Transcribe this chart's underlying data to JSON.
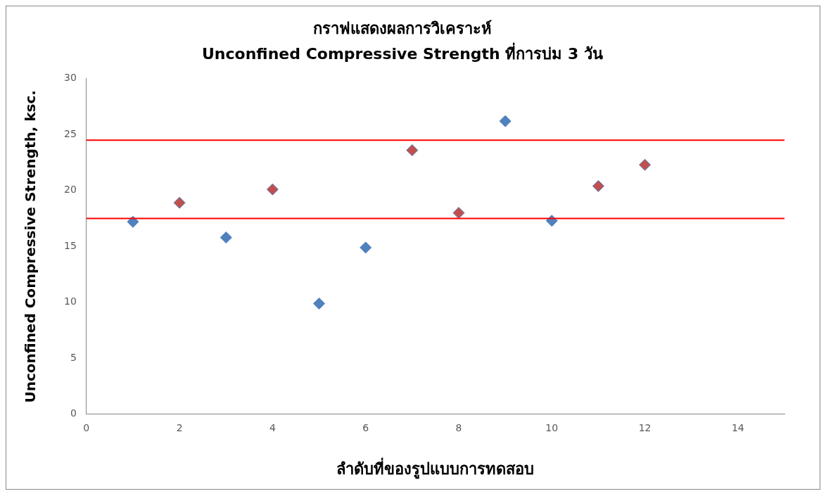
{
  "chart_data": {
    "type": "scatter",
    "title": "กราฟแสดงผลการวิเคราะห์",
    "subtitle": "Unconfined Compressive Strength ที่การบ่ม 3 วัน",
    "xlabel": "ลำดับที่ของรูปแบบการทดสอบ",
    "ylabel": "Unconfined Compressive Strength, ksc.",
    "x": [
      1,
      2,
      3,
      4,
      5,
      6,
      7,
      8,
      9,
      10,
      11,
      12
    ],
    "series": [
      {
        "color": "#4f81bd",
        "colors": [
          "#4f81bd",
          "#c0504d",
          "#4f81bd",
          "#c0504d",
          "#4f81bd",
          "#4f81bd",
          "#c0504d",
          "#c0504d",
          "#4f81bd",
          "#4f81bd",
          "#c0504d",
          "#c0504d"
        ],
        "values": [
          17.2,
          18.9,
          15.8,
          20.1,
          9.9,
          14.9,
          23.6,
          18.0,
          26.2,
          17.3,
          20.4,
          22.3
        ]
      }
    ],
    "xlim": [
      0,
      15
    ],
    "xticks": [
      0,
      2,
      4,
      6,
      8,
      10,
      12,
      14
    ],
    "ylim": [
      0,
      30
    ],
    "yticks": [
      0,
      5,
      10,
      15,
      20,
      25,
      30
    ],
    "ref_lines": [
      {
        "axis": "y",
        "value": 24.5,
        "color": "#ff0000"
      },
      {
        "axis": "y",
        "value": 17.5,
        "color": "#ff0000"
      }
    ],
    "grid": false,
    "legend": false,
    "marker": "diamond"
  }
}
